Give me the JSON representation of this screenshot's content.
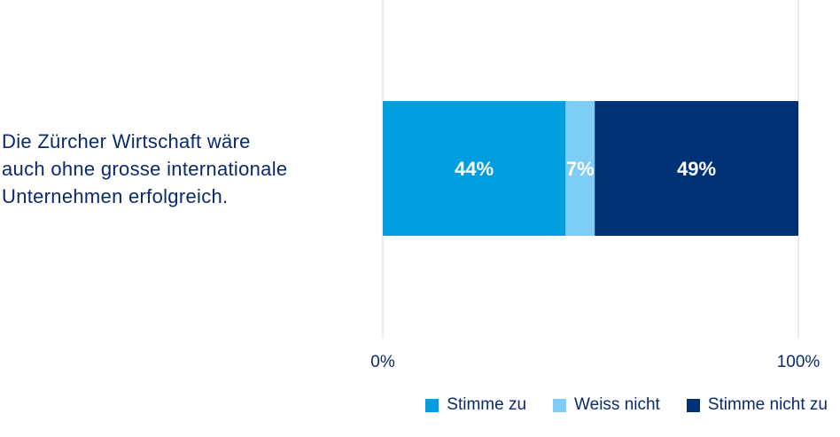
{
  "chart_data": {
    "type": "bar",
    "orientation": "horizontal",
    "stacked": true,
    "categories": [
      "Die Zürcher Wirtschaft wäre auch ohne grosse internationale Unternehmen erfolgreich."
    ],
    "series": [
      {
        "name": "Stimme zu",
        "values": [
          44
        ],
        "color": "#009de0",
        "label": "44%"
      },
      {
        "name": "Weiss nicht",
        "values": [
          7
        ],
        "color": "#7dcdf4",
        "label": "7%"
      },
      {
        "name": "Stimme nicht zu",
        "values": [
          49
        ],
        "color": "#003174",
        "label": "49%"
      }
    ],
    "xlim": [
      0,
      100
    ],
    "xticks": [
      "0%",
      "100%"
    ],
    "title": "",
    "xlabel": "",
    "ylabel": "",
    "legend_position": "bottom-right"
  },
  "category_label_lines": [
    "Die Zürcher Wirtschaft wäre",
    "auch ohne grosse internationale",
    "Unternehmen erfolgreich."
  ],
  "colors": {
    "text": "#0a2a6b",
    "grid": "#d9d9d9"
  }
}
